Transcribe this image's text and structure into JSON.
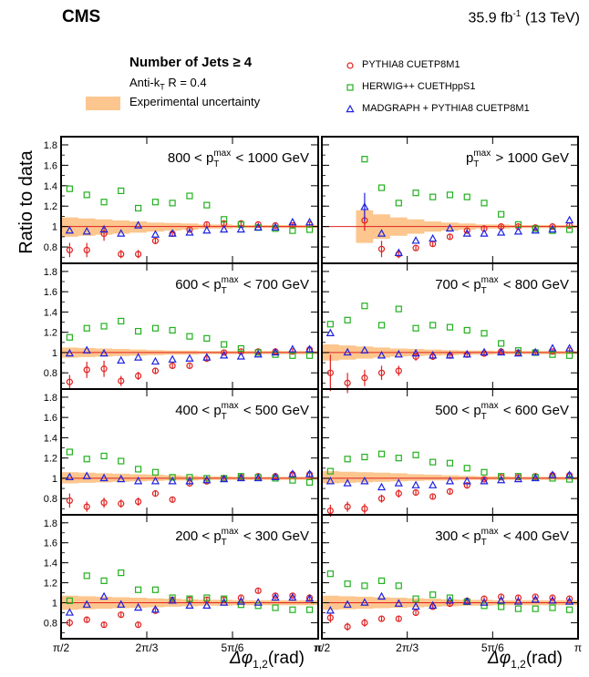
{
  "header": {
    "experiment": "CMS",
    "luminosity": "35.9 fb",
    "lumi_exp": "-1",
    "energy": "(13 TeV)"
  },
  "legend_left": {
    "title_main": "Number of Jets ≥ 4",
    "algo_a": "Anti-k",
    "algo_sub": "T",
    "algo_b": " R = 0.4",
    "band_label": "Experimental uncertainty"
  },
  "colors": {
    "pythia": "#e0201f",
    "herwig": "#22b11e",
    "madgraph": "#1e22e0",
    "band": "#fcc68e"
  },
  "chart_data": {
    "type": "scatter",
    "ylabel": "Ratio to data",
    "xlabel": "Δφ",
    "xlabel_sub": "1,2",
    "xlabel_unit": "(rad)",
    "xticklabels": [
      "π/2",
      "2π/3",
      "5π/6",
      "π"
    ],
    "yticklabels": [
      "0.8",
      "1",
      "1.2",
      "1.4",
      "1.6",
      "1.8"
    ],
    "xlim": [
      1.5708,
      3.1416
    ],
    "ylim": [
      0.64,
      1.88
    ],
    "series": [
      {
        "name": "PYTHIA8 CUETP8M1",
        "marker": "circle",
        "color": "#e0201f"
      },
      {
        "name": "HERWIG++ CUETHppS1",
        "marker": "square",
        "color": "#22b11e"
      },
      {
        "name": "MADGRAPH + PYTHIA8 CUETP8M1",
        "marker": "triangle",
        "color": "#1e22e0"
      }
    ],
    "panels": [
      {
        "id": "p800",
        "label": "800 < p",
        "label_sup": "max",
        "label_sub": "T",
        "label_end": " < 1000 GeV",
        "x": [
          1.623,
          1.728,
          1.833,
          1.937,
          2.042,
          2.147,
          2.251,
          2.356,
          2.461,
          2.566,
          2.67,
          2.775,
          2.88,
          2.985,
          3.089
        ],
        "pythia": [
          0.77,
          0.77,
          0.93,
          0.73,
          0.73,
          0.86,
          0.93,
          0.97,
          1.02,
          1.03,
          1.03,
          1.02,
          1.01,
          1.01,
          1.02
        ],
        "pythia_err": [
          0.07,
          0.07,
          0.07,
          0.04,
          0.04,
          0.03,
          0.03,
          0.02,
          0.02,
          0.02,
          0.02,
          0.02,
          0.02,
          0.02,
          0.02
        ],
        "herwig": [
          1.37,
          1.31,
          1.24,
          1.35,
          1.18,
          1.24,
          1.23,
          1.3,
          1.21,
          1.07,
          1.02,
          0.99,
          0.98,
          0.96,
          0.97
        ],
        "madgraph": [
          0.96,
          0.95,
          0.97,
          0.93,
          1.01,
          0.92,
          0.93,
          0.94,
          0.96,
          0.97,
          0.97,
          0.99,
          0.99,
          1.04,
          1.04
        ],
        "band_lo": [
          0.9,
          0.91,
          0.92,
          0.93,
          0.94,
          0.95,
          0.96,
          0.97,
          0.98,
          0.98,
          0.985,
          0.985,
          0.985,
          0.985,
          0.985
        ],
        "band_hi": [
          1.09,
          1.08,
          1.07,
          1.06,
          1.05,
          1.04,
          1.035,
          1.03,
          1.02,
          1.02,
          1.015,
          1.015,
          1.015,
          1.015,
          1.015
        ]
      },
      {
        "id": "p1000",
        "label": "p",
        "label_sup": "max",
        "label_sub": "T",
        "label_end": " > 1000 GeV",
        "x": [
          1.833,
          1.937,
          2.042,
          2.147,
          2.251,
          2.356,
          2.461,
          2.566,
          2.67,
          2.775,
          2.88,
          2.985,
          3.089
        ],
        "pythia": [
          1.06,
          0.78,
          0.73,
          0.79,
          0.83,
          0.9,
          0.96,
          0.98,
          1.0,
          1.0,
          0.99,
          1.0,
          1.01
        ],
        "pythia_err": [
          0.1,
          0.08,
          0.04,
          0.03,
          0.03,
          0.02,
          0.02,
          0.02,
          0.02,
          0.02,
          0.02,
          0.02,
          0.02
        ],
        "herwig": [
          1.66,
          1.38,
          1.23,
          1.33,
          1.29,
          1.31,
          1.29,
          1.23,
          1.12,
          1.02,
          0.98,
          0.96,
          0.97
        ],
        "madgraph": [
          1.19,
          0.93,
          0.74,
          0.86,
          0.88,
          0.98,
          0.93,
          0.93,
          0.94,
          0.95,
          0.96,
          0.97,
          1.06
        ],
        "madgraph_err": [
          0.14,
          0,
          0,
          0,
          0,
          0,
          0,
          0,
          0,
          0,
          0,
          0,
          0
        ],
        "band_lo": [
          0.84,
          0.88,
          0.91,
          0.93,
          0.95,
          0.96,
          0.97,
          0.98,
          0.98,
          0.985,
          0.985,
          0.985,
          0.985
        ],
        "band_hi": [
          1.16,
          1.12,
          1.09,
          1.07,
          1.05,
          1.04,
          1.03,
          1.02,
          1.02,
          1.015,
          1.015,
          1.015,
          1.015
        ]
      },
      {
        "id": "p600",
        "label": "600 < p",
        "label_sup": "max",
        "label_sub": "T",
        "label_end": " < 700 GeV",
        "x": [
          1.623,
          1.728,
          1.833,
          1.937,
          2.042,
          2.147,
          2.251,
          2.356,
          2.461,
          2.566,
          2.67,
          2.775,
          2.88,
          2.985,
          3.089
        ],
        "pythia": [
          0.71,
          0.83,
          0.84,
          0.72,
          0.77,
          0.82,
          0.87,
          0.87,
          0.94,
          1.0,
          1.01,
          1.01,
          1.01,
          1.01,
          1.03
        ],
        "pythia_err": [
          0.07,
          0.08,
          0.08,
          0.05,
          0.04,
          0.03,
          0.03,
          0.02,
          0.02,
          0.02,
          0.02,
          0.02,
          0.02,
          0.02,
          0.02
        ],
        "herwig": [
          1.15,
          1.24,
          1.26,
          1.31,
          1.21,
          1.24,
          1.22,
          1.16,
          1.14,
          1.08,
          1.04,
          1.0,
          0.98,
          0.97,
          0.97
        ],
        "madgraph": [
          0.99,
          1.02,
          0.99,
          0.92,
          0.95,
          0.91,
          0.93,
          0.94,
          0.95,
          0.97,
          0.96,
          0.98,
          1.0,
          1.03,
          1.03
        ],
        "band_lo": [
          0.95,
          0.955,
          0.96,
          0.965,
          0.97,
          0.975,
          0.98,
          0.98,
          0.985,
          0.985,
          0.985,
          0.985,
          0.985,
          0.985,
          0.985
        ],
        "band_hi": [
          1.05,
          1.045,
          1.04,
          1.035,
          1.03,
          1.025,
          1.02,
          1.02,
          1.015,
          1.015,
          1.015,
          1.015,
          1.015,
          1.015,
          1.015
        ]
      },
      {
        "id": "p700",
        "label": "700 < p",
        "label_sup": "max",
        "label_sub": "T",
        "label_end": " < 800 GeV",
        "x": [
          1.623,
          1.728,
          1.833,
          1.937,
          2.042,
          2.147,
          2.251,
          2.356,
          2.461,
          2.566,
          2.67,
          2.775,
          2.88,
          2.985,
          3.089
        ],
        "pythia": [
          0.8,
          0.7,
          0.75,
          0.8,
          0.82,
          0.96,
          0.96,
          0.97,
          0.98,
          0.99,
          1.01,
          1.0,
          1.0,
          1.01,
          1.02
        ],
        "pythia_err": [
          0.18,
          0.1,
          0.08,
          0.07,
          0.05,
          0.04,
          0.03,
          0.03,
          0.02,
          0.02,
          0.02,
          0.02,
          0.02,
          0.02,
          0.02
        ],
        "herwig": [
          1.28,
          1.32,
          1.46,
          1.27,
          1.43,
          1.24,
          1.27,
          1.25,
          1.22,
          1.19,
          1.09,
          1.02,
          1.0,
          0.98,
          0.97
        ],
        "madgraph": [
          1.19,
          1.0,
          1.02,
          0.97,
          0.98,
          0.99,
          0.97,
          0.97,
          0.98,
          1.0,
          1.0,
          0.99,
          1.0,
          1.04,
          1.04
        ],
        "band_lo": [
          0.92,
          0.93,
          0.94,
          0.95,
          0.96,
          0.965,
          0.97,
          0.975,
          0.98,
          0.98,
          0.985,
          0.985,
          0.985,
          0.985,
          0.985
        ],
        "band_hi": [
          1.08,
          1.07,
          1.06,
          1.05,
          1.04,
          1.035,
          1.03,
          1.025,
          1.02,
          1.02,
          1.015,
          1.015,
          1.015,
          1.015,
          1.015
        ]
      },
      {
        "id": "p400",
        "label": "400 < p",
        "label_sup": "max",
        "label_sub": "T",
        "label_end": " < 500 GeV",
        "x": [
          1.623,
          1.728,
          1.833,
          1.937,
          2.042,
          2.147,
          2.251,
          2.356,
          2.461,
          2.566,
          2.67,
          2.775,
          2.88,
          2.985,
          3.089
        ],
        "pythia": [
          0.78,
          0.72,
          0.76,
          0.75,
          0.77,
          0.85,
          0.79,
          0.95,
          0.97,
          1.0,
          1.01,
          1.02,
          1.02,
          1.04,
          1.04
        ],
        "pythia_err": [
          0.07,
          0.05,
          0.05,
          0.04,
          0.04,
          0.03,
          0.03,
          0.02,
          0.02,
          0.02,
          0.02,
          0.02,
          0.02,
          0.02,
          0.02
        ],
        "herwig": [
          1.26,
          1.19,
          1.22,
          1.17,
          1.09,
          1.06,
          1.01,
          1.01,
          1.0,
          1.0,
          1.02,
          1.01,
          1.0,
          0.98,
          0.96
        ],
        "madgraph": [
          1.01,
          1.02,
          1.0,
          0.99,
          0.97,
          0.97,
          0.97,
          0.97,
          0.98,
          0.99,
          1.0,
          1.0,
          1.01,
          1.04,
          1.04
        ],
        "band_lo": [
          0.95,
          0.955,
          0.96,
          0.965,
          0.97,
          0.975,
          0.98,
          0.98,
          0.985,
          0.985,
          0.985,
          0.985,
          0.985,
          0.985,
          0.985
        ],
        "band_hi": [
          1.06,
          1.055,
          1.05,
          1.045,
          1.04,
          1.035,
          1.03,
          1.025,
          1.02,
          1.02,
          1.015,
          1.015,
          1.015,
          1.015,
          1.015
        ]
      },
      {
        "id": "p500",
        "label": "500 < p",
        "label_sup": "max",
        "label_sub": "T",
        "label_end": " < 600 GeV",
        "x": [
          1.623,
          1.728,
          1.833,
          1.937,
          2.042,
          2.147,
          2.251,
          2.356,
          2.461,
          2.566,
          2.67,
          2.775,
          2.88,
          2.985,
          3.089
        ],
        "pythia": [
          0.68,
          0.72,
          0.7,
          0.8,
          0.85,
          0.86,
          0.82,
          0.87,
          0.93,
          0.99,
          1.01,
          1.01,
          1.02,
          1.03,
          1.03
        ],
        "pythia_err": [
          0.06,
          0.05,
          0.05,
          0.04,
          0.04,
          0.03,
          0.02,
          0.02,
          0.02,
          0.02,
          0.02,
          0.02,
          0.02,
          0.02,
          0.02
        ],
        "herwig": [
          1.07,
          1.19,
          1.21,
          1.24,
          1.2,
          1.23,
          1.16,
          1.15,
          1.1,
          1.06,
          1.02,
          1.02,
          1.01,
          1.0,
          0.99
        ],
        "madgraph": [
          0.97,
          0.95,
          0.97,
          0.91,
          0.95,
          0.93,
          0.93,
          0.97,
          0.97,
          0.97,
          0.98,
          0.99,
          1.0,
          1.03,
          1.03
        ],
        "band_lo": [
          0.95,
          0.955,
          0.96,
          0.965,
          0.97,
          0.975,
          0.98,
          0.98,
          0.985,
          0.985,
          0.985,
          0.985,
          0.985,
          0.985,
          0.985
        ],
        "band_hi": [
          1.07,
          1.065,
          1.06,
          1.055,
          1.05,
          1.04,
          1.035,
          1.03,
          1.025,
          1.02,
          1.02,
          1.015,
          1.015,
          1.015,
          1.015
        ]
      },
      {
        "id": "p200",
        "label": "200 < p",
        "label_sup": "max",
        "label_sub": "T",
        "label_end": " < 300 GeV",
        "x": [
          1.623,
          1.728,
          1.833,
          1.937,
          2.042,
          2.147,
          2.251,
          2.356,
          2.461,
          2.566,
          2.67,
          2.775,
          2.88,
          2.985,
          3.089
        ],
        "pythia": [
          0.8,
          0.83,
          0.78,
          0.88,
          0.78,
          0.92,
          1.03,
          1.03,
          1.03,
          1.03,
          1.05,
          1.12,
          1.07,
          1.07,
          1.05
        ],
        "pythia_err": [
          0.04,
          0.03,
          0.03,
          0.03,
          0.02,
          0.02,
          0.02,
          0.02,
          0.02,
          0.02,
          0.02,
          0.02,
          0.02,
          0.02,
          0.02
        ],
        "herwig": [
          1.02,
          1.27,
          1.22,
          1.3,
          1.13,
          1.13,
          1.05,
          1.04,
          1.05,
          1.04,
          0.98,
          0.97,
          0.95,
          0.93,
          0.93
        ],
        "madgraph": [
          0.9,
          0.98,
          1.06,
          0.98,
          0.95,
          0.93,
          1.02,
          0.97,
          0.97,
          1.0,
          1.01,
          1.0,
          1.05,
          1.05,
          1.04
        ],
        "band_lo": [
          0.93,
          0.935,
          0.94,
          0.945,
          0.95,
          0.955,
          0.96,
          0.965,
          0.97,
          0.97,
          0.975,
          0.975,
          0.975,
          0.975,
          0.975
        ],
        "band_hi": [
          1.07,
          1.065,
          1.06,
          1.055,
          1.05,
          1.045,
          1.04,
          1.035,
          1.03,
          1.03,
          1.025,
          1.025,
          1.025,
          1.025,
          1.025
        ]
      },
      {
        "id": "p300",
        "label": "300 < p",
        "label_sup": "max",
        "label_sub": "T",
        "label_end": " < 400 GeV",
        "x": [
          1.623,
          1.728,
          1.833,
          1.937,
          2.042,
          2.147,
          2.251,
          2.356,
          2.461,
          2.566,
          2.67,
          2.775,
          2.88,
          2.985,
          3.089
        ],
        "pythia": [
          0.85,
          0.76,
          0.8,
          0.84,
          0.84,
          0.9,
          0.96,
          0.99,
          1.02,
          1.04,
          1.06,
          1.05,
          1.06,
          1.05,
          1.04
        ],
        "pythia_err": [
          0.05,
          0.04,
          0.04,
          0.03,
          0.03,
          0.02,
          0.02,
          0.02,
          0.02,
          0.02,
          0.02,
          0.02,
          0.02,
          0.02,
          0.02
        ],
        "herwig": [
          1.29,
          1.19,
          1.17,
          1.22,
          1.17,
          1.04,
          1.08,
          1.05,
          1.01,
          0.97,
          0.96,
          0.94,
          0.94,
          0.95,
          0.93
        ],
        "madgraph": [
          0.92,
          0.98,
          1.0,
          1.06,
          0.99,
          0.96,
          0.97,
          1.02,
          1.01,
          1.0,
          1.02,
          1.01,
          1.03,
          1.02,
          1.01
        ],
        "band_lo": [
          0.93,
          0.935,
          0.94,
          0.945,
          0.95,
          0.955,
          0.96,
          0.965,
          0.97,
          0.97,
          0.975,
          0.975,
          0.975,
          0.975,
          0.975
        ],
        "band_hi": [
          1.07,
          1.065,
          1.06,
          1.055,
          1.05,
          1.045,
          1.04,
          1.035,
          1.03,
          1.03,
          1.025,
          1.025,
          1.025,
          1.025,
          1.025
        ]
      }
    ]
  }
}
